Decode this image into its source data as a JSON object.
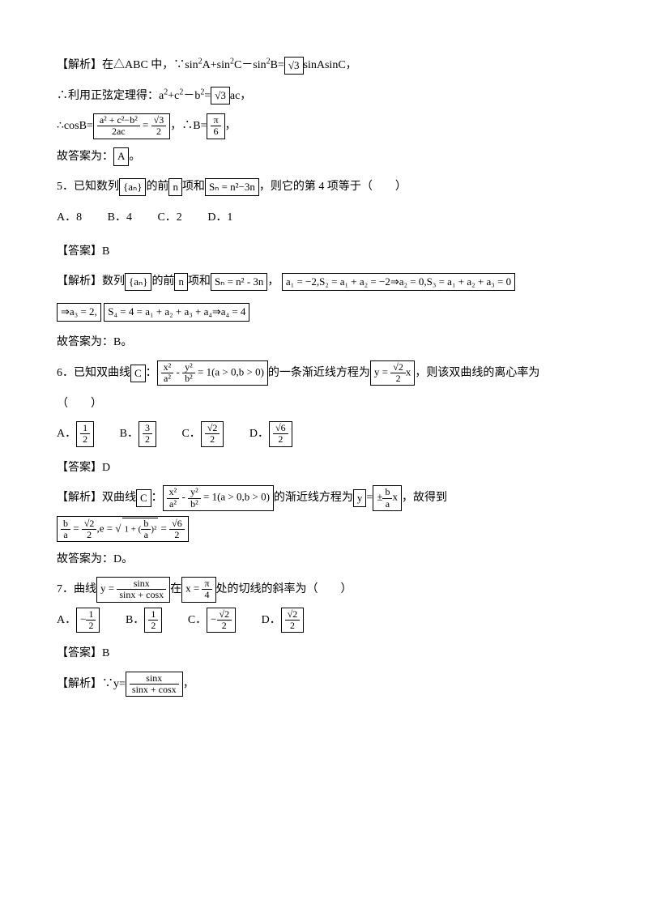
{
  "q4": {
    "analysis_label": "【解析】",
    "l1a": "在△ABC 中，∵sin",
    "l1b": "A+sin",
    "l1c": "C－sin",
    "l1d": "B=",
    "l1e": "sinAsinC，",
    "sqrt3": "3",
    "l2a": "∴利用正弦定理得：a",
    "l2b": "+c",
    "l2c": "－b",
    "l2d": "=",
    "l2e": "ac，",
    "l3a": "∴cosB=",
    "cos_num": "a² + c²−b²",
    "cos_den": "2ac",
    "eq": " = ",
    "half_num": "√3",
    "half_den": "2",
    "l3b": "，∴B=",
    "pi6_num": "π",
    "pi6_den": "6",
    "l3c": "，",
    "l4": "故答案为：",
    "ansA": "A",
    "l4b": "。"
  },
  "q5": {
    "stem_a": "5．已知数列",
    "an": "{aₙ}",
    "stem_b": "的前",
    "n": "n",
    "stem_c": "项和",
    "sn": "Sₙ = n²−3n",
    "stem_d": "，则它的第 4 项等于（　　）",
    "optA": "A．8",
    "optB": "B．4",
    "optC": "C．2",
    "optD": "D．1",
    "ans_label": "【答案】B",
    "ana_label": "【解析】",
    "ana_a": "数列",
    "ana_b": "的前",
    "ana_c": "项和",
    "sn2": "Sₙ = n² - 3n",
    "comma": "，",
    "calc1": "a₁ = −2,S₂ = a₁ + a₂ = −2⇒a₂ = 0,S₃ = a₁ + a₂ + a₃ = 0",
    "calc2": "⇒a₃ = 2,",
    "calc3": "S₄ = 4 = a₁ + a₂ + a₃ + a₄⇒a₄ = 4",
    "end": "故答案为：B。"
  },
  "q6": {
    "stem_a": "6．已知双曲线",
    "C": "C",
    "colon": "：",
    "hyp": "x²/a² - y²/b² = 1(a > 0,b > 0)",
    "hyp_n1": "x²",
    "hyp_d1": "a²",
    "hyp_n2": "y²",
    "hyp_d2": "b²",
    "hyp_tail": " = 1(a > 0,b > 0)",
    "stem_b": "的一条渐近线方程为",
    "asym_pre": "y = ",
    "asym_num": "√2",
    "asym_den": "2",
    "asym_tail": "x",
    "stem_c": "，则该双曲线的离心率为",
    "stem_d": "（　　）",
    "optA_l": "A．",
    "optA_n": "1",
    "optA_d": "2",
    "optB_l": "B．",
    "optB_n": "3",
    "optB_d": "2",
    "optC_l": "C．",
    "optC_n": "√2",
    "optC_d": "2",
    "optD_l": "D．",
    "optD_n": "√6",
    "optD_d": "2",
    "ans_label": "【答案】D",
    "ana_label": "【解析】",
    "ana_a": "双曲线",
    "ana_b": "的渐近线方程为",
    "y": "y",
    "eq": "=",
    "pm": "±",
    "ba_n": "b",
    "ba_d": "a",
    "x": "x",
    "ana_c": "，故得到",
    "e_lhs_n": "b",
    "e_lhs_d": "a",
    "e_eq1": " = ",
    "e_mid_n": "√2",
    "e_mid_d": "2",
    "e_comma": ",e = ",
    "e_sqrt": "1 + (b/a)²",
    "e_eq2": " = ",
    "e_rhs_n": "√6",
    "e_rhs_d": "2",
    "end": "故答案为：D。"
  },
  "q7": {
    "stem_a": "7．曲线",
    "curve_pre": "y = ",
    "curve_num": "sinx",
    "curve_den": "sinx + cosx",
    "stem_b": "在",
    "x_pre": "x = ",
    "x_num": "π",
    "x_den": "4",
    "stem_c": "处的切线的斜率为（　　）",
    "optA_l": "A．",
    "optA_n": "1",
    "optA_d": "2",
    "optA_neg": "−",
    "optB_l": "B．",
    "optB_n": "1",
    "optB_d": "2",
    "optC_l": "C．",
    "optC_n": "√2",
    "optC_d": "2",
    "optC_neg": "−",
    "optD_l": "D．",
    "optD_n": "√2",
    "optD_d": "2",
    "ans_label": "【答案】B",
    "ana_label": "【解析】",
    "ana_a": "∵y=",
    "ana_num": "sinx",
    "ana_den": "sinx + cosx",
    "ana_b": "，"
  }
}
